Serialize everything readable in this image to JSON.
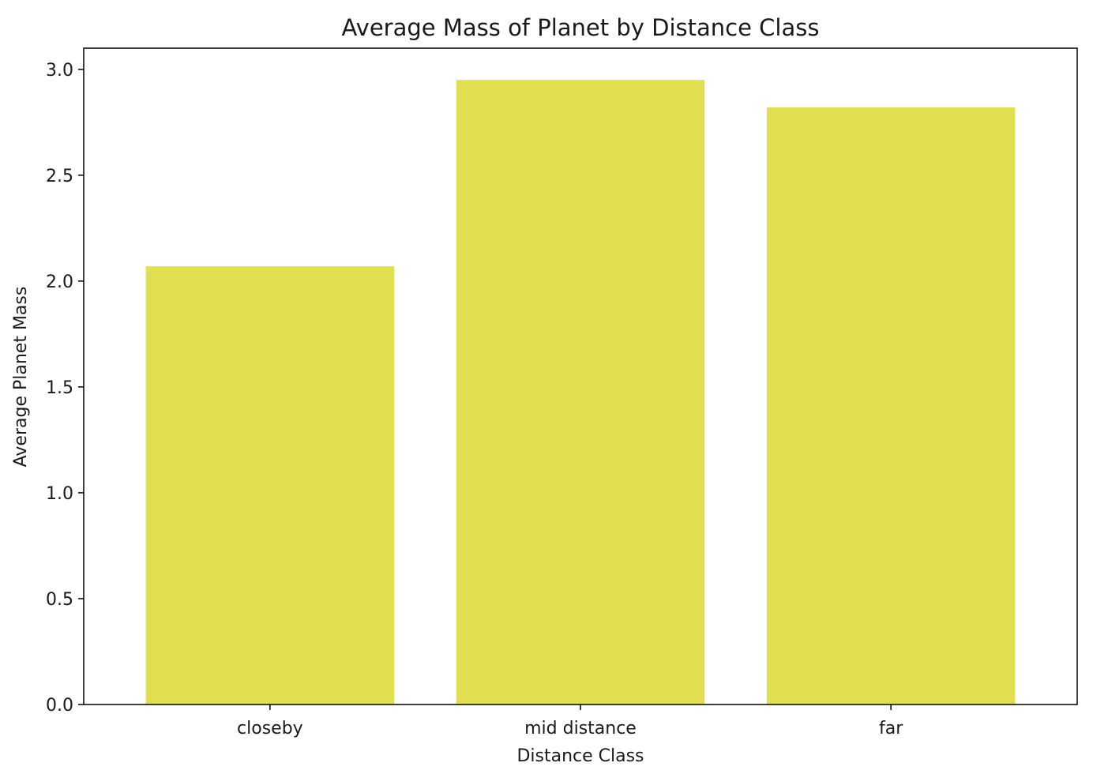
{
  "chart_data": {
    "type": "bar",
    "title": "Average Mass of Planet by Distance Class",
    "xlabel": "Distance Class",
    "ylabel": "Average Planet Mass",
    "categories": [
      "closeby",
      "mid distance",
      "far"
    ],
    "values": [
      2.07,
      2.95,
      2.82
    ],
    "ylim": [
      0,
      3.1
    ],
    "yticks": [
      0.0,
      0.5,
      1.0,
      1.5,
      2.0,
      2.5,
      3.0
    ],
    "ytick_labels": [
      "0.0",
      "0.5",
      "1.0",
      "1.5",
      "2.0",
      "2.5",
      "3.0"
    ],
    "bar_color": "#e0df4f",
    "grid": false,
    "legend": false
  }
}
